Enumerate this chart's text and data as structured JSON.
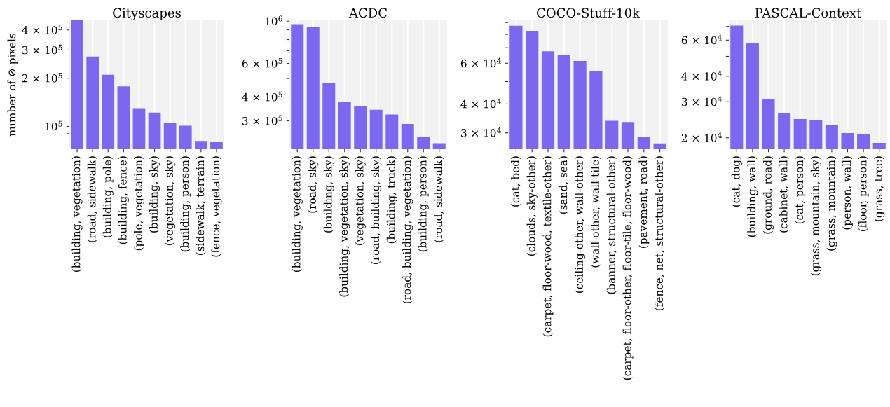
{
  "chart_data": [
    {
      "type": "bar",
      "title": "Cityscapes",
      "ylabel": "number of ⊘ pixels",
      "log": "y",
      "grid": "x",
      "color": "#7b68ee",
      "categories": [
        "(building, vegetation)",
        "(road, sidewalk)",
        "(building, pole)",
        "(building, fence)",
        "(pole, vegetation)",
        "(building, sky)",
        "(vegetation, sky)",
        "(building, person)",
        "(sidewalk, terrain)",
        "(fence, vegetation)"
      ],
      "values": [
        460000,
        273000,
        210000,
        178000,
        130000,
        122000,
        105000,
        101000,
        81000,
        80500
      ],
      "ylim": [
        72000,
        460000
      ],
      "yticks": [
        {
          "value": 90000,
          "label": null
        },
        {
          "value": 100000,
          "label": "10$^{5}$"
        },
        {
          "value": 200000,
          "label": "2 × 10$^{5}$"
        },
        {
          "value": 300000,
          "label": "3 × 10$^{5}$"
        },
        {
          "value": 400000,
          "label": "4 × 10$^{5}$"
        }
      ]
    },
    {
      "type": "bar",
      "title": "ACDC",
      "log": "y",
      "grid": "x",
      "color": "#7b68ee",
      "categories": [
        "(building, vegetation)",
        "(road, sky)",
        "(building, sky)",
        "(building, vegetation, sky)",
        "(vegetation, sky)",
        "(road, building, sky)",
        "(building, truck)",
        "(road, building, vegetation)",
        "(building, person)",
        "(road, sidewalk)"
      ],
      "values": [
        964000,
        930000,
        472000,
        376000,
        358000,
        343000,
        324000,
        289000,
        247000,
        229000
      ],
      "ylim": [
        213000,
        1010000
      ],
      "yticks": [
        {
          "value": 300000,
          "label": "3 × 10$^{5}$"
        },
        {
          "value": 400000,
          "label": "4 × 10$^{5}$"
        },
        {
          "value": 500000,
          "label": null
        },
        {
          "value": 600000,
          "label": "6 × 10$^{5}$"
        },
        {
          "value": 700000,
          "label": null
        },
        {
          "value": 800000,
          "label": null
        },
        {
          "value": 900000,
          "label": null
        },
        {
          "value": 1000000,
          "label": "10$^{6}$"
        }
      ]
    },
    {
      "type": "bar",
      "title": "COCO-Stuff-10k",
      "log": "y",
      "grid": "x",
      "color": "#7b68ee",
      "categories": [
        "(cat, bed)",
        "(clouds, sky-other)",
        "(carpet, floor-wood, textile-other)",
        "(sand, sea)",
        "(ceiling-other, wall-other)",
        "(wall-other, wall-tile)",
        "(banner, structural-other)",
        "(carpet, floor-other, floor-tile, floor-wood)",
        "(pavement, road)",
        "(fence, net, structural-other)"
      ],
      "values": [
        87100,
        82800,
        67600,
        65400,
        61400,
        55300,
        33800,
        33400,
        28800,
        27000
      ],
      "ylim": [
        25500,
        92000
      ],
      "yticks": [
        {
          "value": 30000,
          "label": "3 × 10$^{4}$"
        },
        {
          "value": 40000,
          "label": "4 × 10$^{4}$"
        },
        {
          "value": 50000,
          "label": null
        },
        {
          "value": 60000,
          "label": "6 × 10$^{4}$"
        },
        {
          "value": 70000,
          "label": null
        },
        {
          "value": 80000,
          "label": null
        },
        {
          "value": 90000,
          "label": null
        }
      ]
    },
    {
      "type": "bar",
      "title": "PASCAL-Context",
      "log": "y",
      "grid": "x",
      "color": "#7b68ee",
      "categories": [
        "(cat, dog)",
        "(building, wall)",
        "(ground, road)",
        "(cabinet, wall)",
        "(cat, person)",
        "(grass, mountain, sky)",
        "(grass, mountain)",
        "(person, wall)",
        "(floor, person)",
        "(grass, tree)"
      ],
      "values": [
        70700,
        58000,
        30800,
        26300,
        24700,
        24500,
        23200,
        21100,
        20800,
        18900
      ],
      "ylim": [
        17600,
        75000
      ],
      "yticks": [
        {
          "value": 20000,
          "label": "2 × 10$^{4}$"
        },
        {
          "value": 30000,
          "label": "3 × 10$^{4}$"
        },
        {
          "value": 40000,
          "label": "4 × 10$^{4}$"
        },
        {
          "value": 50000,
          "label": null
        },
        {
          "value": 60000,
          "label": "6 × 10$^{4}$"
        },
        {
          "value": 70000,
          "label": null
        }
      ]
    }
  ]
}
